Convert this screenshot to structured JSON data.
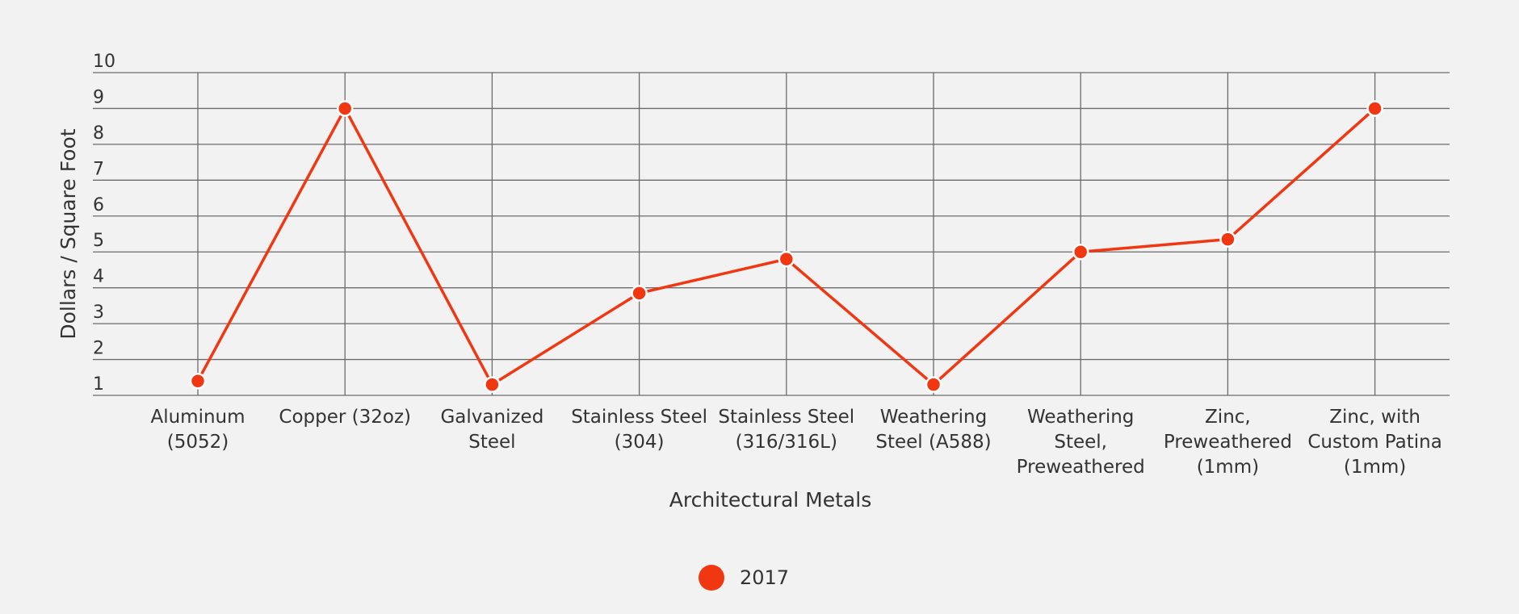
{
  "chart_data": {
    "type": "line",
    "title": "",
    "xlabel": "Architectural Metals",
    "ylabel": "Dollars / Square Foot",
    "ylim": [
      1,
      10
    ],
    "yticks": [
      1,
      2,
      3,
      4,
      5,
      6,
      7,
      8,
      9,
      10
    ],
    "grid": true,
    "legend_position": "bottom-center",
    "categories": [
      [
        "Aluminum",
        "(5052)"
      ],
      [
        "Copper (32oz)"
      ],
      [
        "Galvanized",
        "Steel"
      ],
      [
        "Stainless Steel",
        "(304)"
      ],
      [
        "Stainless Steel",
        "(316/316L)"
      ],
      [
        "Weathering",
        "Steel (A588)"
      ],
      [
        "Weathering",
        "Steel,",
        "Preweathered"
      ],
      [
        "Zinc,",
        "Preweathered",
        "(1mm)"
      ],
      [
        "Zinc, with",
        "Custom Patina",
        "(1mm)"
      ]
    ],
    "series": [
      {
        "name": "2017",
        "color": "#f03712",
        "values": [
          1.4,
          9.0,
          1.3,
          3.85,
          4.8,
          1.3,
          5.0,
          5.35,
          9.0
        ]
      }
    ]
  }
}
